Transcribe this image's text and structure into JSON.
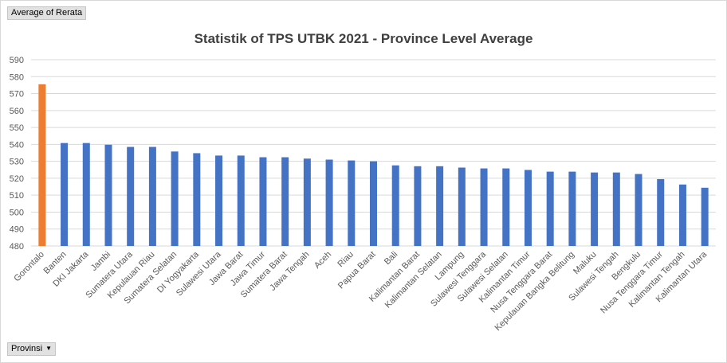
{
  "pivot": {
    "value_field": "Average of Rerata",
    "axis_field": "Provinsi",
    "axis_icon": "dropdown-arrow-icon"
  },
  "colors": {
    "default_bar": "#4472c4",
    "highlight_bar": "#ed7d31",
    "grid": "#d9d9d9"
  },
  "chart_data": {
    "type": "bar",
    "title": "Statistik of TPS UTBK 2021 - Province Level Average",
    "xlabel": "",
    "ylabel": "",
    "ylim": [
      480,
      590
    ],
    "ytick_step": 10,
    "grid": true,
    "legend": "none",
    "highlight_index": 0,
    "categories": [
      "Gorontalo",
      "Banten",
      "DKI Jakarta",
      "Jambi",
      "Sumatera Utara",
      "Kepulauan Riau",
      "Sumatera Selatan",
      "DI Yogyakarta",
      "Sulawesi Utara",
      "Jawa Barat",
      "Jawa Timur",
      "Sumatera Barat",
      "Jawa Tengah",
      "Aceh",
      "Riau",
      "Papua Barat",
      "Bali",
      "Kalimantan Barat",
      "Kalimantan Selatan",
      "Lampung",
      "Sulawesi Tenggara",
      "Sulawesi Selatan",
      "Kalimantan Timur",
      "Nusa Tenggara Barat",
      "Kepulauan Bangka Belitung",
      "Maluku",
      "Sulawesi Tengah",
      "Bengkulu",
      "Nusa Tenggara Timur",
      "Kalimantan Tengah",
      "Kalimantan Utara"
    ],
    "values": [
      575.5,
      540.8,
      540.8,
      539.8,
      538.5,
      538.5,
      535.8,
      534.8,
      533.4,
      533.4,
      532.4,
      532.4,
      531.6,
      531.0,
      530.5,
      530.0,
      527.6,
      527.1,
      527.1,
      526.3,
      525.8,
      525.8,
      524.9,
      523.9,
      523.9,
      523.4,
      523.4,
      522.5,
      519.5,
      516.3,
      514.4
    ]
  }
}
